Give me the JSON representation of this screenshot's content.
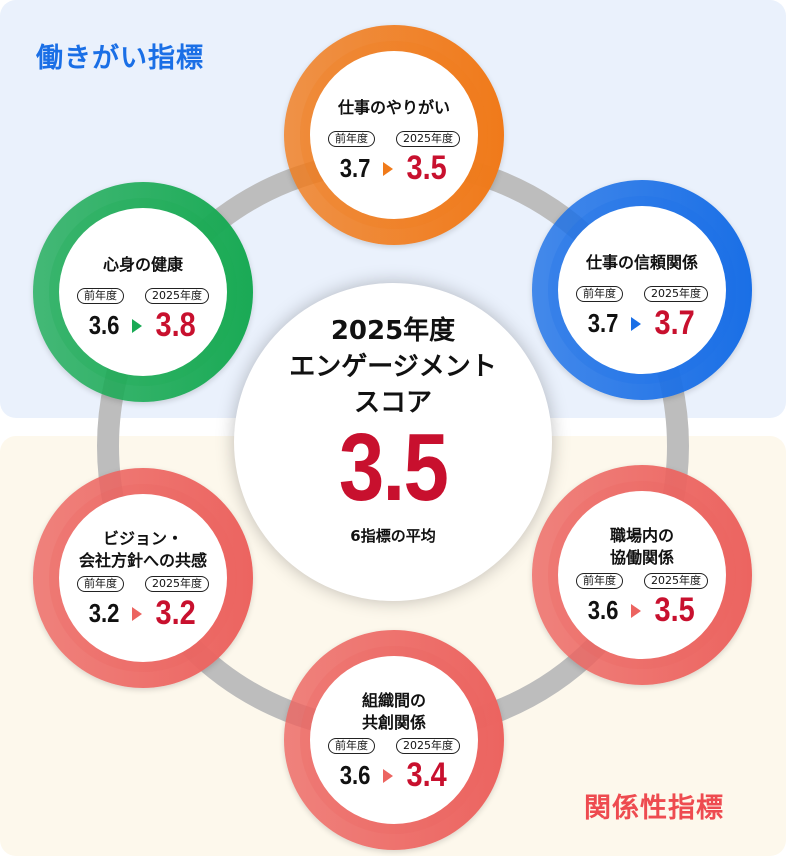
{
  "groups": {
    "work": {
      "label": "働きがい指標",
      "color": "#1a6fe6"
    },
    "relation": {
      "label": "関係性指標",
      "color": "#ee4b50"
    }
  },
  "center": {
    "title_lines": [
      "2025年度",
      "エンゲージメント",
      "スコア"
    ],
    "score": "3.5",
    "note": "6指標の平均",
    "score_color": "#c8102e"
  },
  "labels": {
    "prev_year": "前年度",
    "current_year": "2025年度"
  },
  "indicators": [
    {
      "id": "work-fulfillment",
      "title_lines": [
        "仕事のやりがい"
      ],
      "prev": "3.7",
      "current": "3.5",
      "color": "#f07a1a",
      "group": "work"
    },
    {
      "id": "work-trust",
      "title_lines": [
        "仕事の信頼関係"
      ],
      "prev": "3.7",
      "current": "3.7",
      "color": "#1a6fe6",
      "group": "work"
    },
    {
      "id": "collaboration",
      "title_lines": [
        "職場内の",
        "協働関係"
      ],
      "prev": "3.6",
      "current": "3.5",
      "color": "#ec6460",
      "group": "relation"
    },
    {
      "id": "co-creation",
      "title_lines": [
        "組織間の",
        "共創関係"
      ],
      "prev": "3.6",
      "current": "3.4",
      "color": "#ec6460",
      "group": "relation"
    },
    {
      "id": "vision-empathy",
      "title_lines": [
        "ビジョン・",
        "会社方針への共感"
      ],
      "prev": "3.2",
      "current": "3.2",
      "color": "#ec6460",
      "group": "relation"
    },
    {
      "id": "mind-body-health",
      "title_lines": [
        "心身の健康"
      ],
      "prev": "3.6",
      "current": "3.8",
      "color": "#1aaa55",
      "group": "work"
    }
  ]
}
